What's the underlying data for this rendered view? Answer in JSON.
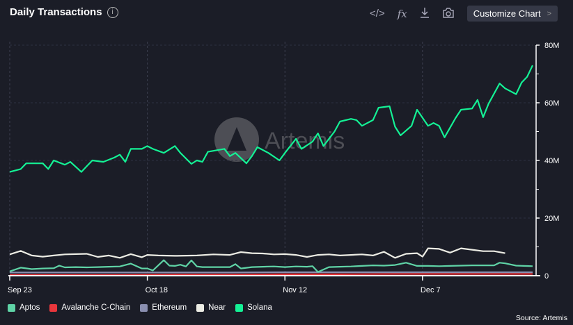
{
  "header": {
    "title": "Daily Transactions",
    "info_icon": "info-icon",
    "customize_label": "Customize Chart",
    "tools": [
      "code-icon",
      "fx-icon",
      "download-icon",
      "camera-icon"
    ],
    "fx_label": "fx"
  },
  "source": "Source: Artemis",
  "watermark": "Artemis",
  "chart_data": {
    "type": "line",
    "title": "Daily Transactions",
    "x_unit": "days since Sep 23",
    "xlim": [
      0,
      95
    ],
    "x_ticks": [
      {
        "day": 0,
        "label": "Sep 23"
      },
      {
        "day": 25,
        "label": "Oct 18"
      },
      {
        "day": 50,
        "label": "Nov 12"
      },
      {
        "day": 75,
        "label": "Dec 7"
      }
    ],
    "ylim": [
      0,
      80000000
    ],
    "y_ticks": [
      {
        "value": 0,
        "label": "0"
      },
      {
        "value": 20000000,
        "label": "20M"
      },
      {
        "value": 40000000,
        "label": "40M"
      },
      {
        "value": 60000000,
        "label": "60M"
      },
      {
        "value": 80000000,
        "label": "80M"
      }
    ],
    "y_axis_side": "right",
    "grid": true,
    "legend_position": "bottom-left",
    "series": [
      {
        "name": "Aptos",
        "color": "#5fd3a6",
        "x": [
          0,
          2,
          4,
          6,
          8,
          9,
          10,
          12,
          14,
          16,
          18,
          20,
          22,
          24,
          25,
          26,
          28,
          29,
          30,
          31,
          32,
          33,
          34,
          35,
          36,
          38,
          40,
          41,
          42,
          44,
          46,
          48,
          50,
          52,
          54,
          55,
          56,
          58,
          60,
          62,
          64,
          66,
          68,
          70,
          72,
          74,
          76,
          78,
          80,
          82,
          84,
          86,
          88,
          89,
          90,
          92,
          95
        ],
        "y": [
          1.5,
          2.8,
          2.3,
          2.5,
          2.6,
          3.5,
          2.9,
          3.0,
          2.9,
          3.0,
          3.1,
          3.2,
          4.2,
          2.5,
          2.5,
          1.8,
          5.4,
          3.5,
          3.4,
          3.8,
          3.2,
          5.3,
          3.2,
          3.0,
          3.0,
          3.0,
          3.0,
          4.0,
          2.5,
          3.0,
          3.1,
          3.2,
          3.0,
          3.2,
          3.1,
          3.3,
          1.3,
          3.0,
          3.1,
          3.2,
          3.4,
          3.6,
          3.5,
          3.7,
          4.5,
          3.4,
          3.4,
          3.3,
          3.4,
          3.5,
          3.6,
          3.6,
          3.6,
          4.5,
          4.3,
          3.5,
          3.3
        ]
      },
      {
        "name": "Avalanche C-Chain",
        "color": "#e8363c",
        "x": [
          0,
          10,
          20,
          30,
          40,
          50,
          60,
          70,
          80,
          90,
          95
        ],
        "y": [
          0.3,
          0.3,
          0.3,
          0.4,
          0.4,
          0.5,
          0.5,
          0.6,
          0.6,
          0.6,
          0.6
        ]
      },
      {
        "name": "Ethereum",
        "color": "#8a8fb0",
        "x": [
          0,
          10,
          20,
          30,
          40,
          50,
          60,
          70,
          80,
          90,
          95
        ],
        "y": [
          1.1,
          1.1,
          1.1,
          1.1,
          1.1,
          1.2,
          1.2,
          1.2,
          1.2,
          1.2,
          1.2
        ]
      },
      {
        "name": "Near",
        "color": "#ecece4",
        "x": [
          0,
          2,
          4,
          6,
          8,
          10,
          12,
          14,
          16,
          18,
          20,
          22,
          24,
          25,
          27,
          30,
          34,
          37,
          40,
          42,
          44,
          46,
          48,
          50,
          52,
          54,
          56,
          58,
          60,
          62,
          64,
          66,
          68,
          70,
          72,
          74,
          75,
          76,
          78,
          80,
          82,
          84,
          86,
          88,
          90
        ],
        "y": [
          7.4,
          8.6,
          7.0,
          6.6,
          7.0,
          7.4,
          7.5,
          7.6,
          6.5,
          7.0,
          6.2,
          7.5,
          6.4,
          7.2,
          7.0,
          6.9,
          7.0,
          7.4,
          7.2,
          8.2,
          7.8,
          7.7,
          7.4,
          7.5,
          7.2,
          6.5,
          7.2,
          7.4,
          7.0,
          7.2,
          7.4,
          7.0,
          8.3,
          6.2,
          7.6,
          7.8,
          6.6,
          9.5,
          9.3,
          8.0,
          9.5,
          9.0,
          8.5,
          8.5,
          7.8
        ]
      },
      {
        "name": "Solana",
        "color": "#14f195",
        "x": [
          0,
          2,
          3,
          6,
          7,
          8,
          10,
          11,
          13,
          14,
          15,
          17,
          19,
          20,
          21,
          22,
          24,
          25,
          26,
          28,
          30,
          31,
          33,
          34,
          35,
          36,
          39,
          40,
          41,
          43,
          44,
          45,
          47,
          49,
          50,
          52,
          53,
          55,
          56,
          57,
          59,
          60,
          62,
          63,
          64,
          66,
          67,
          69,
          70,
          71,
          73,
          74,
          76,
          77,
          78,
          79,
          81,
          82,
          84,
          85,
          86,
          87,
          89,
          90,
          92,
          93,
          94,
          95
        ],
        "y": [
          36,
          37,
          39,
          39,
          37,
          40,
          38.5,
          39.5,
          36,
          38,
          40,
          39.5,
          41,
          42,
          39.5,
          44,
          44,
          45,
          44,
          42.6,
          45,
          42.6,
          38.8,
          40,
          39.5,
          43,
          44,
          41.5,
          42.6,
          39,
          41.5,
          44.6,
          42.6,
          40,
          42.6,
          47.5,
          44,
          46.5,
          49.4,
          45,
          50,
          53.5,
          54.4,
          54,
          52,
          54,
          58.3,
          58.8,
          51.7,
          48.7,
          52,
          57.6,
          52,
          53,
          52,
          48,
          54.7,
          57.6,
          58,
          61,
          55,
          59.7,
          66.7,
          65,
          63,
          67,
          69,
          73
        ]
      }
    ]
  }
}
